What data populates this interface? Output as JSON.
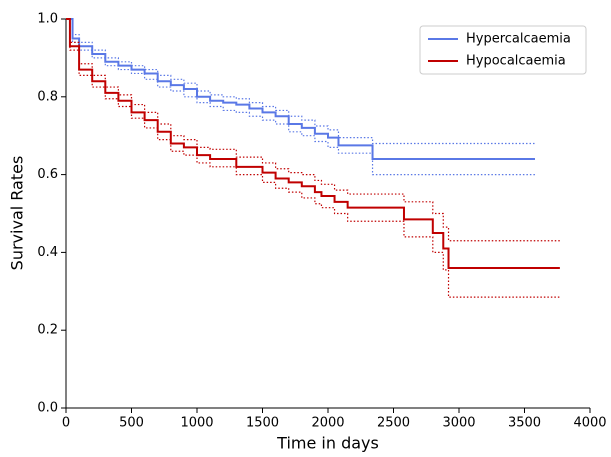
{
  "chart_data": {
    "type": "step",
    "xlabel": "Time in days",
    "ylabel": "Survival Rates",
    "xlim": [
      0,
      4000
    ],
    "ylim": [
      0,
      1
    ],
    "xticks": [
      0,
      500,
      1000,
      1500,
      2000,
      2500,
      3000,
      3500,
      4000
    ],
    "yticks": [
      {
        "value": 0,
        "label": "0.0"
      },
      0.2,
      0.4,
      0.6,
      0.8,
      {
        "value": 1,
        "label": "1.0"
      }
    ],
    "legend": "upper right",
    "series": [
      {
        "name": "Hypercalcaemia",
        "color": "#5a78e6",
        "x": [
          0,
          50,
          100,
          200,
          300,
          400,
          500,
          600,
          700,
          800,
          900,
          1000,
          1100,
          1200,
          1300,
          1400,
          1500,
          1600,
          1700,
          1800,
          1900,
          2000,
          2080,
          2340,
          3580
        ],
        "values": [
          1.0,
          0.95,
          0.93,
          0.91,
          0.89,
          0.88,
          0.87,
          0.86,
          0.84,
          0.83,
          0.82,
          0.8,
          0.79,
          0.785,
          0.78,
          0.77,
          0.76,
          0.75,
          0.73,
          0.72,
          0.705,
          0.695,
          0.675,
          0.64,
          0.64
        ],
        "lower": [
          1.0,
          0.94,
          0.92,
          0.9,
          0.88,
          0.87,
          0.86,
          0.845,
          0.825,
          0.815,
          0.8,
          0.785,
          0.775,
          0.765,
          0.76,
          0.75,
          0.74,
          0.73,
          0.71,
          0.7,
          0.685,
          0.67,
          0.655,
          0.6,
          0.6
        ],
        "upper": [
          1.0,
          0.96,
          0.94,
          0.92,
          0.9,
          0.89,
          0.88,
          0.87,
          0.855,
          0.845,
          0.835,
          0.815,
          0.805,
          0.8,
          0.795,
          0.785,
          0.775,
          0.765,
          0.75,
          0.74,
          0.725,
          0.715,
          0.695,
          0.68,
          0.68
        ]
      },
      {
        "name": "Hypocalcaemia",
        "color": "#c00000",
        "x": [
          0,
          30,
          100,
          200,
          300,
          400,
          500,
          600,
          700,
          800,
          900,
          1000,
          1100,
          1300,
          1500,
          1600,
          1700,
          1800,
          1900,
          1950,
          2050,
          2150,
          2450,
          2580,
          2800,
          2880,
          2920,
          3770
        ],
        "values": [
          1.0,
          0.93,
          0.87,
          0.84,
          0.81,
          0.79,
          0.76,
          0.74,
          0.71,
          0.68,
          0.67,
          0.65,
          0.64,
          0.62,
          0.605,
          0.59,
          0.58,
          0.57,
          0.555,
          0.545,
          0.53,
          0.515,
          0.515,
          0.485,
          0.45,
          0.41,
          0.36,
          0.36
        ],
        "lower": [
          1.0,
          0.92,
          0.855,
          0.825,
          0.795,
          0.775,
          0.745,
          0.72,
          0.69,
          0.66,
          0.65,
          0.63,
          0.62,
          0.6,
          0.58,
          0.565,
          0.555,
          0.54,
          0.525,
          0.515,
          0.5,
          0.48,
          0.48,
          0.44,
          0.4,
          0.355,
          0.285,
          0.285
        ],
        "upper": [
          1.0,
          0.94,
          0.885,
          0.855,
          0.825,
          0.805,
          0.78,
          0.76,
          0.73,
          0.7,
          0.69,
          0.67,
          0.665,
          0.645,
          0.63,
          0.615,
          0.605,
          0.6,
          0.585,
          0.575,
          0.56,
          0.55,
          0.55,
          0.53,
          0.5,
          0.465,
          0.43,
          0.43
        ]
      }
    ]
  }
}
